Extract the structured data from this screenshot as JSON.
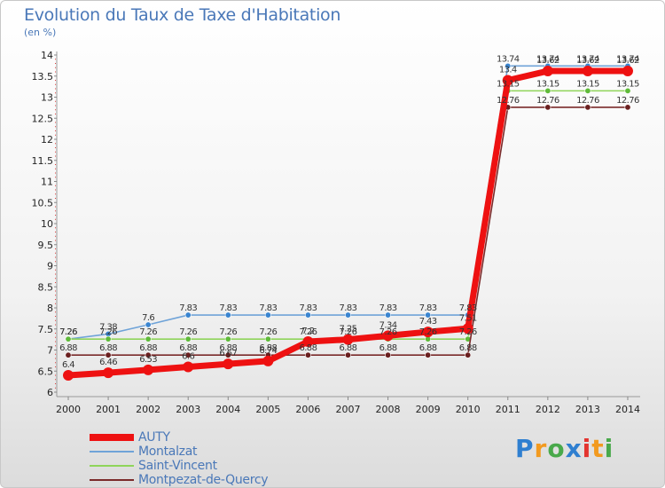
{
  "title": "Evolution du Taux de Taxe d'Habitation",
  "ylabel": "(en %)",
  "logo": {
    "text": "Proxiti",
    "colors": [
      "#2f7fd0",
      "#f29a1f",
      "#49a94b",
      "#2f7fd0",
      "#e3342f",
      "#f29a1f",
      "#49a94b"
    ]
  },
  "chart_data": {
    "type": "line",
    "title": "Evolution du Taux de Taxe d'Habitation",
    "ylabel": "(en %)",
    "x": [
      "2000",
      "2001",
      "2002",
      "2003",
      "2004",
      "2005",
      "2006",
      "2007",
      "2008",
      "2009",
      "2010",
      "2011",
      "2012",
      "2013",
      "2014"
    ],
    "ylim": [
      6,
      14
    ],
    "yticks": [
      "6",
      "6.5",
      "7",
      "7.5",
      "8",
      "8.5",
      "9",
      "9.5",
      "10",
      "10.5",
      "11",
      "11.5",
      "12",
      "12.5",
      "13",
      "13.5",
      "14"
    ],
    "grid": false,
    "legend": "bottom-left",
    "series": [
      {
        "name": "Montalzat",
        "color": "#6fa3d8",
        "marker": "#3a85d0",
        "values": [
          7.26,
          7.38,
          7.6,
          7.83,
          7.83,
          7.83,
          7.83,
          7.83,
          7.83,
          7.83,
          7.83,
          13.74,
          13.74,
          13.74,
          13.74
        ]
      },
      {
        "name": "Saint-Vincent",
        "color": "#8fd45a",
        "marker": "#5fba3a",
        "values": [
          7.26,
          7.26,
          7.26,
          7.26,
          7.26,
          7.26,
          7.26,
          7.26,
          7.26,
          7.26,
          7.26,
          13.15,
          13.15,
          13.15,
          13.15
        ]
      },
      {
        "name": "Montpezat-de-Quercy",
        "color": "#7a2a2a",
        "marker": "#6a1f1f",
        "values": [
          6.88,
          6.88,
          6.88,
          6.88,
          6.88,
          6.88,
          6.88,
          6.88,
          6.88,
          6.88,
          6.88,
          12.76,
          12.76,
          12.76,
          12.76
        ]
      },
      {
        "name": "AUTY",
        "color": "#ee1111",
        "marker": "#ee1111",
        "values": [
          6.4,
          6.46,
          6.53,
          6.6,
          6.67,
          6.74,
          7.2,
          7.25,
          7.34,
          7.43,
          7.51,
          13.4,
          13.62,
          13.62,
          13.62
        ]
      }
    ],
    "labels": {
      "Montalzat": [
        "7.26",
        "7.38",
        "7.6",
        "7.83",
        "7.83",
        "7.83",
        "7.83",
        "7.83",
        "7.83",
        "7.83",
        "7.83",
        "13.74",
        "13.74",
        "13.74",
        "13.74"
      ],
      "Saint-Vincent": [
        "7.26",
        "7.26",
        "7.26",
        "7.26",
        "7.26",
        "7.26",
        "7.26",
        "7.26",
        "7.26",
        "7.26",
        "7.26",
        "13.15",
        "13.15",
        "13.15",
        "13.15"
      ],
      "Montpezat-de-Quercy": [
        "6.88",
        "6.88",
        "6.88",
        "6.88",
        "6.88",
        "6.88",
        "6.88",
        "6.88",
        "6.88",
        "6.88",
        "6.88",
        "12.76",
        "12.76",
        "12.76",
        "12.76"
      ],
      "AUTY": [
        "6.4",
        "6.46",
        "6.53",
        "6.6",
        "6.67",
        "6.74",
        "7.2",
        "7.25",
        "7.34",
        "7.43",
        "7.51",
        "13.4",
        "13.62",
        "13.62",
        "13.62"
      ]
    }
  },
  "legend": [
    {
      "name": "AUTY",
      "color": "#ee1111",
      "width": 8
    },
    {
      "name": "Montalzat",
      "color": "#6fa3d8",
      "width": 2
    },
    {
      "name": "Saint-Vincent",
      "color": "#8fd45a",
      "width": 2
    },
    {
      "name": "Montpezat-de-Quercy",
      "color": "#7a2a2a",
      "width": 2
    }
  ]
}
